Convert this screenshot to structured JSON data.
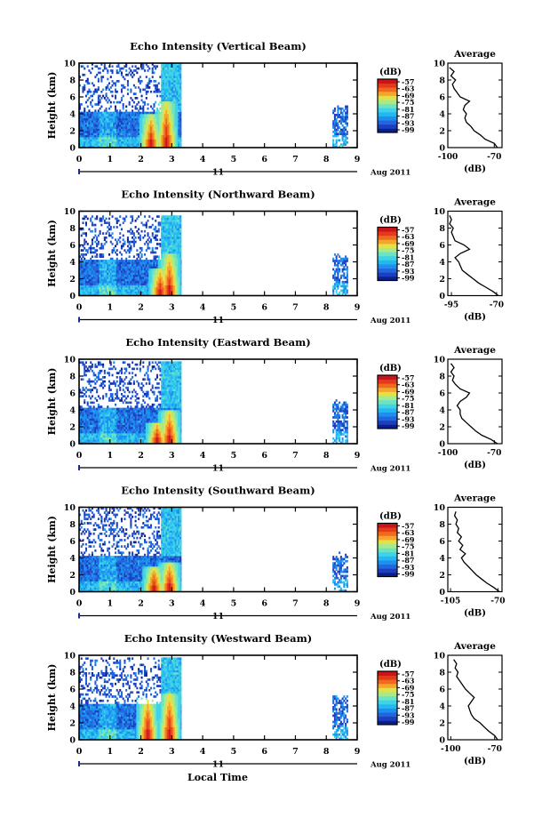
{
  "figure": {
    "xlabel_bottom": "Local Time",
    "date_day": "11",
    "date_month_year": "Aug 2011",
    "colorbar_unit": "(dB)",
    "colorbar_ticks": [
      "-57",
      "-63",
      "-69",
      "-75",
      "-81",
      "-87",
      "-93",
      "-99"
    ],
    "colormap": [
      "#0a1f8f",
      "#1d3fbf",
      "#2266dd",
      "#1e8fef",
      "#25b7f2",
      "#3fd3e6",
      "#6ee3c2",
      "#a6ea8c",
      "#e4e04a",
      "#f3a62b",
      "#ef6a1f",
      "#e33a1a",
      "#c8141a"
    ],
    "avg_title": "Average",
    "avg_xlabel": "(dB)"
  },
  "chart_data": [
    {
      "type": "heatmap",
      "title": "Echo Intensity (Vertical Beam)",
      "xlabel": "Local Time",
      "ylabel": "Height (km)",
      "xlim": [
        0,
        9
      ],
      "ylim": [
        0,
        10
      ],
      "xticks": [
        "0",
        "1",
        "2",
        "3",
        "4",
        "5",
        "6",
        "7",
        "8",
        "9"
      ],
      "yticks": [
        "0",
        "2",
        "4",
        "6",
        "8",
        "10"
      ],
      "zlim_db": [
        -99,
        -57
      ],
      "data_segments": [
        {
          "t_start": 0.0,
          "t_end": 3.3,
          "top_km": 9.8
        },
        {
          "t_start": 8.2,
          "t_end": 8.7,
          "top_km": 5.0
        }
      ],
      "strong_echo_cores": [
        {
          "t": 2.3,
          "top_km": 3.8
        },
        {
          "t": 2.8,
          "top_km": 5.5
        }
      ],
      "average_profile": {
        "title": "Average",
        "xlabel": "(dB)",
        "xlim": [
          -100,
          -65
        ],
        "xticks": [
          "-100",
          "-70"
        ],
        "heights_km": [
          0,
          0.5,
          1,
          1.5,
          2,
          2.5,
          3,
          3.5,
          4,
          4.5,
          5,
          5.5,
          6,
          6.5,
          7,
          7.5,
          8,
          8.5,
          9,
          9.5
        ],
        "values_db": [
          -68,
          -70,
          -76,
          -79,
          -83,
          -85,
          -88,
          -89,
          -88,
          -90,
          -89,
          -86,
          -92,
          -94,
          -96,
          -97,
          -95,
          -98,
          -96,
          -99
        ]
      }
    },
    {
      "type": "heatmap",
      "title": "Echo Intensity (Northward Beam)",
      "xlabel": "Local Time",
      "ylabel": "Height (km)",
      "xlim": [
        0,
        9
      ],
      "ylim": [
        0,
        10
      ],
      "xticks": [
        "0",
        "1",
        "2",
        "3",
        "4",
        "5",
        "6",
        "7",
        "8",
        "9"
      ],
      "yticks": [
        "0",
        "2",
        "4",
        "6",
        "8",
        "10"
      ],
      "zlim_db": [
        -99,
        -57
      ],
      "data_segments": [
        {
          "t_start": 0.0,
          "t_end": 3.3,
          "top_km": 9.5
        },
        {
          "t_start": 8.2,
          "t_end": 8.7,
          "top_km": 4.8
        }
      ],
      "strong_echo_cores": [
        {
          "t": 2.6,
          "top_km": 3.2
        },
        {
          "t": 2.9,
          "top_km": 4.8
        }
      ],
      "average_profile": {
        "title": "Average",
        "xlabel": "(dB)",
        "xlim": [
          -97,
          -67
        ],
        "xticks": [
          "-95",
          "-70"
        ],
        "heights_km": [
          0,
          0.5,
          1,
          1.5,
          2,
          2.5,
          3,
          3.5,
          4,
          4.5,
          5,
          5.5,
          6,
          6.5,
          7,
          7.5,
          8,
          8.5,
          9,
          9.5
        ],
        "values_db": [
          -69,
          -72,
          -76,
          -80,
          -83,
          -86,
          -89,
          -90,
          -91,
          -93,
          -90,
          -85,
          -88,
          -93,
          -94,
          -95,
          -94,
          -96,
          -95,
          -96
        ]
      }
    },
    {
      "type": "heatmap",
      "title": "Echo Intensity (Eastward Beam)",
      "xlabel": "Local Time",
      "ylabel": "Height (km)",
      "xlim": [
        0,
        9
      ],
      "ylim": [
        0,
        10
      ],
      "xticks": [
        "0",
        "1",
        "2",
        "3",
        "4",
        "5",
        "6",
        "7",
        "8",
        "9"
      ],
      "yticks": [
        "0",
        "2",
        "4",
        "6",
        "8",
        "10"
      ],
      "zlim_db": [
        -99,
        -57
      ],
      "data_segments": [
        {
          "t_start": 0.0,
          "t_end": 3.3,
          "top_km": 9.6
        },
        {
          "t_start": 8.2,
          "t_end": 8.7,
          "top_km": 5.2
        }
      ],
      "strong_echo_cores": [
        {
          "t": 2.5,
          "top_km": 2.5
        },
        {
          "t": 2.9,
          "top_km": 4.0
        }
      ],
      "average_profile": {
        "title": "Average",
        "xlabel": "(dB)",
        "xlim": [
          -100,
          -65
        ],
        "xticks": [
          "-100",
          "-70"
        ],
        "heights_km": [
          0,
          0.5,
          1,
          1.5,
          2,
          2.5,
          3,
          3.5,
          4,
          4.5,
          5,
          5.5,
          6,
          6.5,
          7,
          7.5,
          8,
          8.5,
          9,
          9.5
        ],
        "values_db": [
          -68,
          -72,
          -78,
          -82,
          -85,
          -88,
          -91,
          -92,
          -92,
          -94,
          -92,
          -88,
          -86,
          -92,
          -95,
          -97,
          -96,
          -98,
          -96,
          -98
        ]
      }
    },
    {
      "type": "heatmap",
      "title": "Echo Intensity (Southward Beam)",
      "xlabel": "Local Time",
      "ylabel": "Height (km)",
      "xlim": [
        0,
        9
      ],
      "ylim": [
        0,
        10
      ],
      "xticks": [
        "0",
        "1",
        "2",
        "3",
        "4",
        "5",
        "6",
        "7",
        "8",
        "9"
      ],
      "yticks": [
        "0",
        "2",
        "4",
        "6",
        "8",
        "10"
      ],
      "zlim_db": [
        -99,
        -57
      ],
      "data_segments": [
        {
          "t_start": 0.0,
          "t_end": 3.3,
          "top_km": 9.8
        },
        {
          "t_start": 8.2,
          "t_end": 8.7,
          "top_km": 4.6
        }
      ],
      "strong_echo_cores": [
        {
          "t": 2.4,
          "top_km": 3.0
        },
        {
          "t": 2.9,
          "top_km": 3.5
        }
      ],
      "average_profile": {
        "title": "Average",
        "xlabel": "(dB)",
        "xlim": [
          -107,
          -67
        ],
        "xticks": [
          "-105",
          "-70"
        ],
        "heights_km": [
          0,
          0.5,
          1,
          1.5,
          2,
          2.5,
          3,
          3.5,
          4,
          4.5,
          5,
          5.5,
          6,
          6.5,
          7,
          7.5,
          8,
          8.5,
          9,
          9.5
        ],
        "values_db": [
          -69,
          -73,
          -78,
          -82,
          -86,
          -89,
          -92,
          -95,
          -97,
          -94,
          -98,
          -96,
          -99,
          -97,
          -100,
          -99,
          -101,
          -100,
          -102,
          -101
        ]
      }
    },
    {
      "type": "heatmap",
      "title": "Echo Intensity (Westward Beam)",
      "xlabel": "Local Time",
      "ylabel": "Height (km)",
      "xlim": [
        0,
        9
      ],
      "ylim": [
        0,
        10
      ],
      "xticks": [
        "0",
        "1",
        "2",
        "3",
        "4",
        "5",
        "6",
        "7",
        "8",
        "9"
      ],
      "yticks": [
        "0",
        "2",
        "4",
        "6",
        "8",
        "10"
      ],
      "zlim_db": [
        -99,
        -57
      ],
      "data_segments": [
        {
          "t_start": 0.0,
          "t_end": 3.3,
          "top_km": 9.6
        },
        {
          "t_start": 8.2,
          "t_end": 8.7,
          "top_km": 5.4
        }
      ],
      "strong_echo_cores": [
        {
          "t": 2.2,
          "top_km": 5.0
        },
        {
          "t": 2.9,
          "top_km": 5.5
        }
      ],
      "average_profile": {
        "title": "Average",
        "xlabel": "(dB)",
        "xlim": [
          -102,
          -65
        ],
        "xticks": [
          "-100",
          "-70"
        ],
        "heights_km": [
          0,
          0.5,
          1,
          1.5,
          2,
          2.5,
          3,
          3.5,
          4,
          4.5,
          5,
          5.5,
          6,
          6.5,
          7,
          7.5,
          8,
          8.5,
          9,
          9.5
        ],
        "values_db": [
          -68,
          -70,
          -74,
          -77,
          -80,
          -84,
          -86,
          -87,
          -88,
          -86,
          -84,
          -87,
          -90,
          -92,
          -94,
          -96,
          -95,
          -97,
          -96,
          -98
        ]
      }
    }
  ]
}
